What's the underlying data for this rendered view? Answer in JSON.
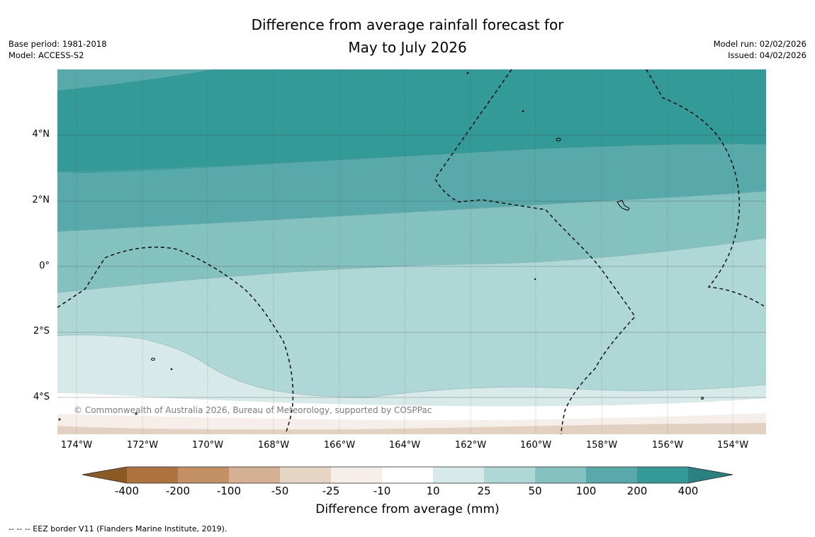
{
  "title": {
    "line1": "Difference from average rainfall forecast for",
    "line2": "May to July 2026"
  },
  "meta_left": {
    "base_period": "Base period: 1981-2018",
    "model": "Model: ACCESS-S2"
  },
  "meta_right": {
    "model_run": "Model run: 02/02/2026",
    "issued": "Issued: 04/02/2026"
  },
  "map": {
    "lat_labels": [
      "4°N",
      "2°N",
      "0°",
      "2°S",
      "4°S"
    ],
    "lon_labels": [
      "174°W",
      "172°W",
      "170°W",
      "168°W",
      "166°W",
      "164°W",
      "162°W",
      "160°W",
      "158°W",
      "156°W",
      "154°W"
    ],
    "copyright": "© Commonwealth of Australia 2026, Bureau of Meteorology, supported by COSPPac"
  },
  "colorbar": {
    "title": "Difference from average (mm)",
    "tick_labels": [
      "-400",
      "-200",
      "-100",
      "-50",
      "-25",
      "-10",
      "10",
      "25",
      "50",
      "100",
      "200",
      "400"
    ],
    "colors": {
      "below_-400": "#8c5a24",
      "-400_-200": "#ad7440",
      "-200_-100": "#c39066",
      "-100_-50": "#d5b092",
      "-50_-25": "#e7d5c4",
      "-25_-10": "#f6efe9",
      "-10_10": "#ffffff",
      "10_25": "#d7eae9",
      "25_50": "#aed7d6",
      "50_100": "#84c2c0",
      "100_200": "#58aaaa",
      "200_400": "#339a98",
      "above_400": "#2a817f"
    }
  },
  "footnote": "--  --  -- EEZ border V11 (Flanders Marine Institute, 2019)."
}
